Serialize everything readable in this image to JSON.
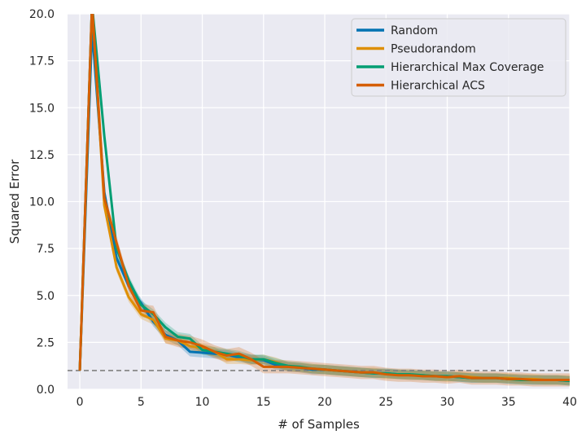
{
  "chart_data": {
    "type": "line",
    "xlabel": "# of Samples",
    "ylabel": "Squared Error",
    "xlim": [
      -1,
      40
    ],
    "ylim": [
      0,
      20
    ],
    "x_ticks": [
      "0",
      "5",
      "10",
      "15",
      "20",
      "25",
      "30",
      "35",
      "40"
    ],
    "y_ticks": [
      "0.0",
      "2.5",
      "5.0",
      "7.5",
      "10.0",
      "12.5",
      "15.0",
      "17.5",
      "20.0"
    ],
    "grid": true,
    "legend_position": "top-right",
    "reference_line": {
      "y": 1.0,
      "style": "dashed",
      "color": "#808080"
    },
    "series": [
      {
        "name": "Random",
        "color": "#0173b2",
        "x": [
          0,
          1,
          2,
          3,
          4,
          5,
          6,
          7,
          8,
          9,
          10,
          11,
          12,
          13,
          14,
          15,
          16,
          17,
          18,
          19,
          20,
          21,
          22,
          23,
          24,
          25,
          26,
          27,
          28,
          29,
          30,
          31,
          32,
          33,
          34,
          35,
          36,
          37,
          38,
          39,
          40
        ],
        "y": [
          1.0,
          19.2,
          10.5,
          7.0,
          5.5,
          4.6,
          3.6,
          2.9,
          2.6,
          2.0,
          1.95,
          1.9,
          1.85,
          1.7,
          1.6,
          1.55,
          1.3,
          1.2,
          1.15,
          1.05,
          1.05,
          1.0,
          0.95,
          0.9,
          0.85,
          0.85,
          0.8,
          0.75,
          0.75,
          0.7,
          0.7,
          0.65,
          0.6,
          0.6,
          0.6,
          0.55,
          0.55,
          0.5,
          0.5,
          0.5,
          0.45
        ],
        "band": 0.25
      },
      {
        "name": "Pseudorandom",
        "color": "#de8f05",
        "x": [
          0,
          1,
          2,
          3,
          4,
          5,
          6,
          7,
          8,
          9,
          10,
          11,
          12,
          13,
          14,
          15,
          16,
          17,
          18,
          19,
          20,
          21,
          22,
          23,
          24,
          25,
          26,
          27,
          28,
          29,
          30,
          31,
          32,
          33,
          34,
          35,
          36,
          37,
          38,
          39,
          40
        ],
        "y": [
          1.0,
          20.5,
          9.8,
          6.5,
          4.9,
          4.0,
          3.7,
          2.7,
          2.6,
          2.3,
          2.2,
          2.0,
          1.6,
          1.6,
          1.55,
          1.6,
          1.45,
          1.2,
          1.15,
          1.1,
          1.05,
          1.0,
          0.95,
          0.9,
          0.9,
          0.8,
          0.8,
          0.75,
          0.75,
          0.7,
          0.65,
          0.7,
          0.65,
          0.6,
          0.6,
          0.6,
          0.55,
          0.55,
          0.5,
          0.5,
          0.5
        ],
        "band": 0.25
      },
      {
        "name": "Hierarchical Max Coverage",
        "color": "#029e73",
        "x": [
          0,
          1,
          2,
          3,
          4,
          5,
          6,
          7,
          8,
          9,
          10,
          11,
          12,
          13,
          14,
          15,
          16,
          17,
          18,
          19,
          20,
          21,
          22,
          23,
          24,
          25,
          26,
          27,
          28,
          29,
          30,
          31,
          32,
          33,
          34,
          35,
          36,
          37,
          38,
          39,
          40
        ],
        "y": [
          1.0,
          20.5,
          13.5,
          7.5,
          5.8,
          4.5,
          4.0,
          3.3,
          2.8,
          2.7,
          2.1,
          2.0,
          1.9,
          1.8,
          1.6,
          1.6,
          1.4,
          1.25,
          1.2,
          1.1,
          1.05,
          1.0,
          0.95,
          0.9,
          0.85,
          0.85,
          0.8,
          0.8,
          0.75,
          0.7,
          0.7,
          0.65,
          0.6,
          0.6,
          0.6,
          0.55,
          0.5,
          0.5,
          0.5,
          0.5,
          0.45
        ],
        "band": 0.25
      },
      {
        "name": "Hierarchical ACS",
        "color": "#d55e00",
        "x": [
          0,
          1,
          2,
          3,
          4,
          5,
          6,
          7,
          8,
          9,
          10,
          11,
          12,
          13,
          14,
          15,
          16,
          17,
          18,
          19,
          20,
          21,
          22,
          23,
          24,
          25,
          26,
          27,
          28,
          29,
          30,
          31,
          32,
          33,
          34,
          35,
          36,
          37,
          38,
          39,
          40
        ],
        "y": [
          1.0,
          20.5,
          10.2,
          7.8,
          5.5,
          4.2,
          4.1,
          2.8,
          2.6,
          2.5,
          2.3,
          2.0,
          1.8,
          1.9,
          1.6,
          1.2,
          1.2,
          1.2,
          1.15,
          1.1,
          1.05,
          1.0,
          0.95,
          0.9,
          0.9,
          0.8,
          0.75,
          0.75,
          0.7,
          0.7,
          0.65,
          0.7,
          0.6,
          0.6,
          0.6,
          0.55,
          0.55,
          0.5,
          0.5,
          0.5,
          0.5
        ],
        "band": 0.35
      }
    ]
  }
}
